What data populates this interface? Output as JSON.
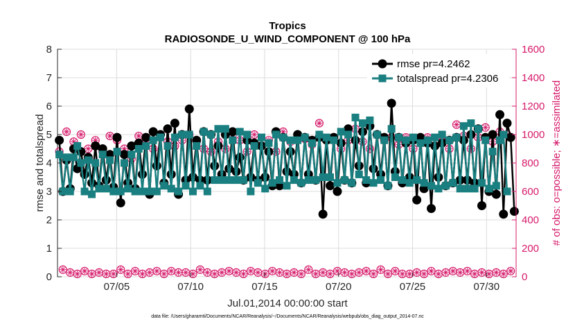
{
  "chart_data": {
    "type": "line",
    "title": "Tropics",
    "subtitle": "RADIOSONDE_U_WIND_COMPONENT @ 100 hPa",
    "xlabel": "Jul.01,2014 00:00:00 start",
    "ylabel": "rmse and totalspread",
    "y2label": "# of obs: o=possible; ∗=assimilated",
    "x_range_days": [
      1,
      32
    ],
    "xticks": [
      5,
      10,
      15,
      20,
      25,
      30
    ],
    "xtick_labels": [
      "07/05",
      "07/10",
      "07/15",
      "07/20",
      "07/25",
      "07/30"
    ],
    "ylim": [
      0,
      8
    ],
    "yticks": [
      "0",
      "1",
      "2",
      "3",
      "4",
      "5",
      "6",
      "7",
      "8"
    ],
    "y2lim": [
      0,
      1600
    ],
    "y2ticks": [
      "0",
      "200",
      "400",
      "600",
      "800",
      "1000",
      "1200",
      "1400",
      "1600"
    ],
    "grid": true,
    "legend_position": "top-right",
    "footnote": "data file: /Users/gharamti/Documents/NCAR/Reanalysis/~/Documents/NCAR/Reanalysis/webpub/obs_diag_output_2014-07.nc",
    "colors": {
      "rmse": "#000000",
      "totalspread": "#1a7f80",
      "obs": "#d6196a"
    },
    "series": [
      {
        "name": "rmse",
        "legend": "rmse pr=4.2462",
        "axis": "left",
        "values": [
          4.8,
          3.0,
          4.1,
          3.1,
          4.5,
          3.8,
          4.4,
          3.6,
          4.2,
          3.3,
          4.6,
          3.2,
          4.5,
          3.4,
          4.3,
          3.15,
          4.9,
          2.6,
          4.3,
          3.3,
          4.6,
          3.1,
          4.7,
          3.6,
          4.9,
          2.9,
          5.1,
          3.9,
          5.0,
          3.3,
          5.2,
          3.6,
          5.4,
          2.9,
          5.0,
          3.4,
          5.9,
          3.5,
          4.8,
          3.4,
          5.1,
          3.4,
          5.0,
          3.9,
          4.6,
          3.6,
          5.0,
          3.8,
          5.1,
          3.7,
          4.2,
          3.4,
          4.8,
          3.5,
          4.7,
          3.4,
          4.6,
          3.5,
          4.4,
          3.2,
          5.1,
          3.2,
          4.9,
          3.7,
          4.4,
          3.6,
          5.0,
          3.3,
          4.9,
          3.6,
          4.8,
          3.4,
          4.9,
          2.2,
          4.8,
          3.2,
          4.9,
          3.0,
          4.7,
          3.4,
          5.2,
          3.3,
          4.8,
          3.9,
          5.1,
          3.3,
          5.3,
          3.8,
          5.0,
          3.6,
          4.9,
          3.2,
          6.1,
          3.7,
          4.9,
          3.3,
          4.7,
          3.5,
          4.8,
          2.7,
          4.9,
          3.1,
          4.7,
          2.4,
          4.6,
          3.5,
          4.7,
          3.2,
          4.8,
          3.3,
          4.9,
          3.4,
          4.8,
          3.4,
          5.0,
          3.3,
          5.2,
          2.5,
          4.9,
          3.0,
          5.0,
          2.9,
          5.7,
          2.2,
          5.4,
          4.9,
          2.3
        ]
      },
      {
        "name": "totalspread",
        "legend": "totalspread pr=4.2306",
        "axis": "left",
        "values": [
          4.3,
          3.0,
          4.2,
          3.0,
          4.2,
          4.6,
          4.0,
          3.0,
          4.1,
          2.9,
          4.0,
          3.1,
          4.3,
          3.1,
          4.1,
          3.0,
          4.4,
          3.0,
          4.0,
          3.1,
          4.3,
          3.0,
          4.5,
          3.0,
          4.6,
          3.0,
          4.8,
          3.0,
          4.9,
          3.2,
          4.6,
          3.1,
          4.9,
          3.0,
          5.0,
          3.2,
          5.0,
          3.0,
          4.6,
          3.2,
          5.1,
          3.0,
          5.0,
          3.4,
          5.2,
          3.4,
          5.2,
          3.4,
          4.8,
          3.4,
          5.1,
          3.4,
          5.0,
          3.0,
          4.6,
          3.3,
          4.9,
          3.1,
          4.7,
          3.3,
          5.0,
          3.4,
          4.9,
          3.2,
          4.8,
          3.4,
          4.8,
          3.3,
          4.9,
          3.4,
          4.7,
          3.4,
          5.0,
          3.5,
          4.9,
          3.5,
          4.8,
          3.3,
          5.1,
          3.4,
          5.0,
          3.3,
          5.6,
          3.6,
          5.4,
          3.4,
          5.5,
          3.3,
          5.0,
          3.4,
          4.8,
          3.2,
          5.2,
          3.5,
          4.9,
          3.4,
          4.8,
          3.3,
          4.9,
          3.4,
          4.7,
          3.3,
          4.8,
          3.2,
          4.9,
          3.1,
          5.0,
          3.2,
          4.8,
          3.3,
          4.9,
          3.1,
          5.3,
          3.1,
          5.4,
          3.1,
          5.2,
          3.3,
          4.8,
          3.1,
          4.4,
          3.2,
          4.8,
          5.0,
          3.0
        ]
      },
      {
        "name": "obs possible",
        "axis": "right",
        "marker": "o",
        "values": [
          880,
          50,
          1020,
          30,
          950,
          20,
          1000,
          40,
          900,
          20,
          960,
          30,
          880,
          20,
          990,
          20,
          960,
          50,
          900,
          20,
          830,
          40,
          990,
          20,
          950,
          30,
          900,
          40,
          1000,
          20,
          950,
          40,
          920,
          30,
          960,
          30,
          1000,
          20,
          950,
          50,
          900,
          30,
          880,
          20,
          950,
          30,
          900,
          40,
          1000,
          30,
          960,
          20,
          880,
          40,
          1000,
          30,
          920,
          20,
          960,
          40,
          880,
          30,
          1020,
          20,
          950,
          30,
          1000,
          20,
          970,
          50,
          930,
          20,
          1080,
          30,
          960,
          20,
          980,
          40,
          900,
          30,
          960,
          20,
          1040,
          30,
          950,
          40,
          900,
          20,
          1000,
          50,
          960,
          20,
          980,
          40,
          930,
          20,
          980,
          20,
          900,
          30,
          960,
          20,
          980,
          40,
          920,
          20,
          950,
          30,
          900,
          40,
          1070,
          30,
          990,
          40,
          900,
          20,
          980,
          30,
          1050,
          20,
          950,
          30,
          1020,
          20,
          1000,
          40
        ]
      },
      {
        "name": "obs assimilated",
        "axis": "right",
        "marker": "*",
        "values": [
          880,
          50,
          1020,
          30,
          950,
          20,
          1000,
          40,
          900,
          20,
          960,
          30,
          880,
          20,
          990,
          20,
          960,
          50,
          900,
          20,
          830,
          40,
          990,
          20,
          950,
          30,
          900,
          40,
          1000,
          20,
          950,
          40,
          920,
          30,
          960,
          30,
          1000,
          20,
          950,
          50,
          900,
          30,
          880,
          20,
          950,
          30,
          900,
          40,
          1000,
          30,
          960,
          20,
          880,
          40,
          1000,
          30,
          920,
          20,
          960,
          40,
          880,
          30,
          1020,
          20,
          950,
          30,
          1000,
          20,
          970,
          50,
          930,
          20,
          1080,
          30,
          960,
          20,
          980,
          40,
          900,
          30,
          960,
          20,
          1040,
          30,
          950,
          40,
          900,
          20,
          1000,
          50,
          960,
          20,
          980,
          40,
          930,
          20,
          980,
          20,
          900,
          30,
          960,
          20,
          980,
          40,
          920,
          20,
          950,
          30,
          900,
          40,
          1070,
          30,
          990,
          40,
          900,
          20,
          980,
          30,
          1050,
          20,
          950,
          30,
          1020,
          20,
          1000,
          40
        ]
      }
    ]
  }
}
